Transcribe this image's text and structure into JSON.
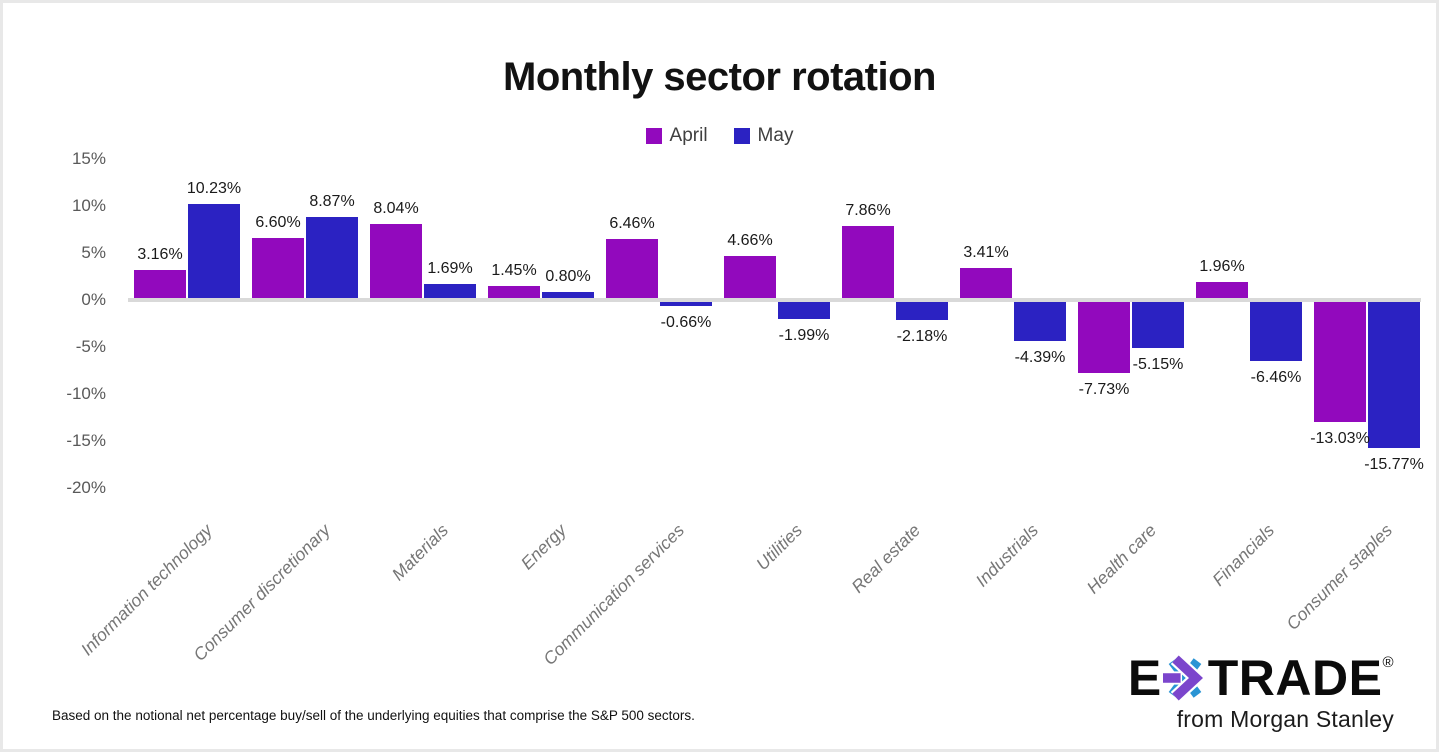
{
  "title": "Monthly sector rotation",
  "legend": {
    "items": [
      {
        "label": "April"
      },
      {
        "label": "May"
      }
    ]
  },
  "footnote": "Based on the notional net percentage buy/sell of the underlying equities that comprise the S&P 500 sectors.",
  "logo": {
    "brand_left": "E",
    "brand_right": "TRADE",
    "registered": "®",
    "tagline": "from Morgan Stanley",
    "asterisk_purple": "#7b45cc",
    "asterisk_blue": "#2994d4"
  },
  "chart_data": {
    "type": "bar",
    "title": "Monthly sector rotation",
    "categories": [
      "Information technology",
      "Consumer discretionary",
      "Materials",
      "Energy",
      "Communication services",
      "Utilities",
      "Real estate",
      "Industrials",
      "Health care",
      "Financials",
      "Consumer staples"
    ],
    "series": [
      {
        "name": "April",
        "color": "#9209bd",
        "values": [
          3.16,
          6.6,
          8.04,
          1.45,
          6.46,
          4.66,
          7.86,
          3.41,
          -7.73,
          1.96,
          -13.03
        ]
      },
      {
        "name": "May",
        "color": "#2b22c2",
        "values": [
          10.23,
          8.87,
          1.69,
          0.8,
          -0.66,
          -1.99,
          -2.18,
          -4.39,
          -5.15,
          -6.46,
          -15.77
        ]
      }
    ],
    "y_ticks": [
      15,
      10,
      5,
      0,
      -5,
      -10,
      -15,
      -20
    ],
    "ylim": [
      -20,
      15
    ],
    "xlabel": "",
    "ylabel": "",
    "grid": false,
    "legend_position": "top",
    "value_labels": true,
    "value_label_format": "{value}%",
    "axis_line_color": "#d9d9d9",
    "tick_label_color": "#595959",
    "category_label_color": "#767676",
    "value_label_color": "#1a1a1a"
  }
}
